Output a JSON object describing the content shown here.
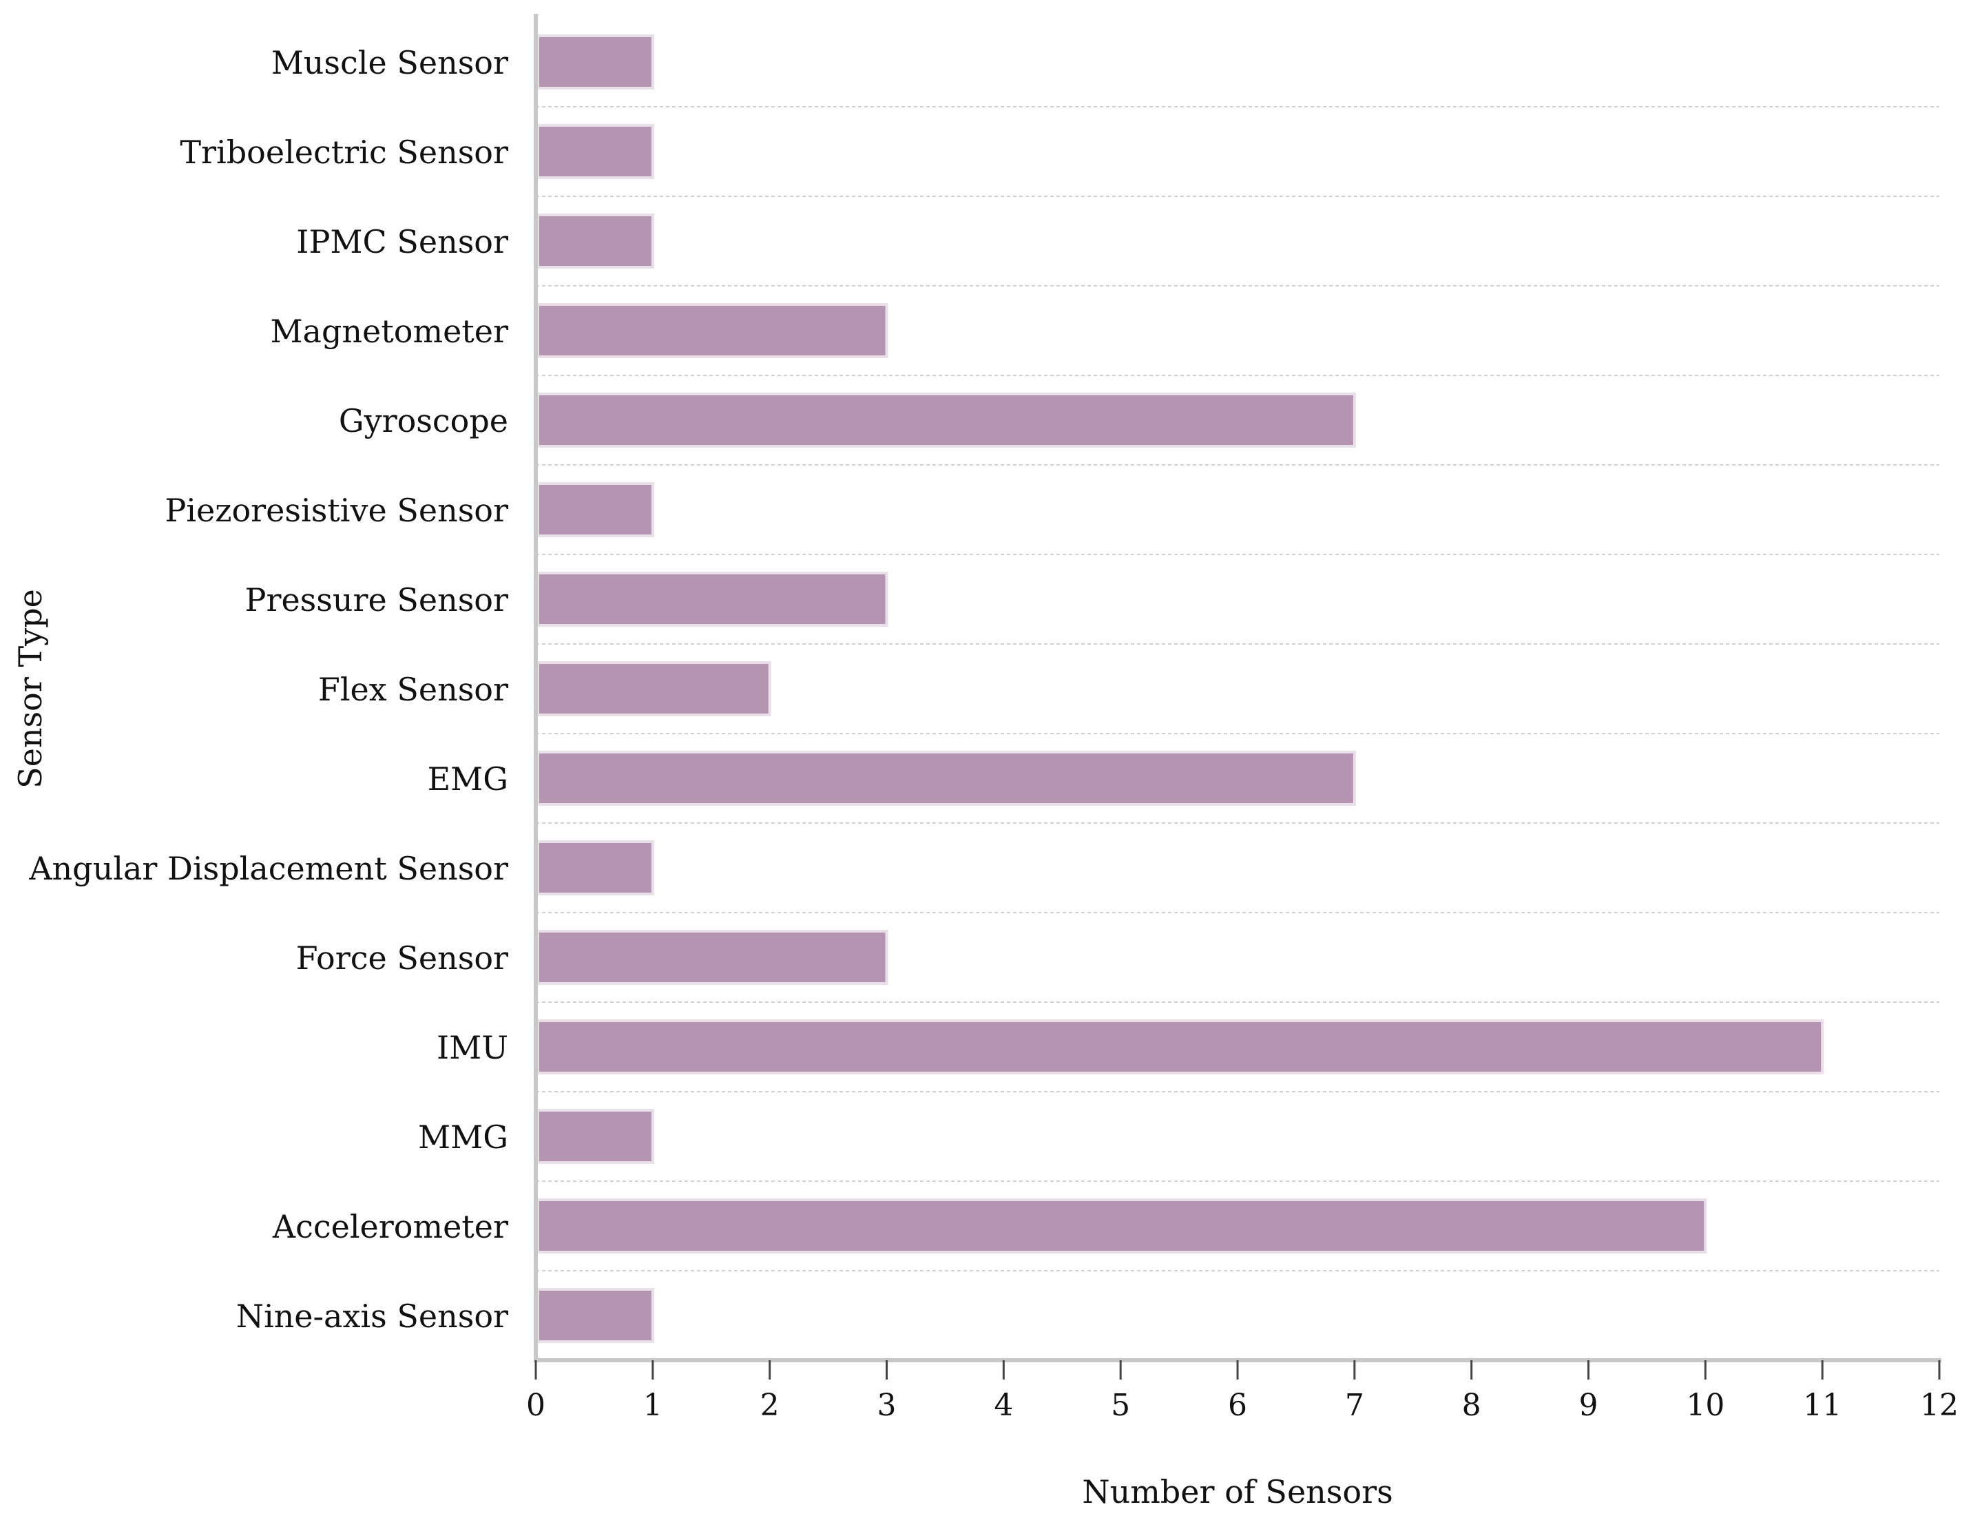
{
  "chart_data": {
    "type": "bar",
    "orientation": "horizontal",
    "categories": [
      "Muscle Sensor",
      "Triboelectric Sensor",
      "IPMC Sensor",
      "Magnetometer",
      "Gyroscope",
      "Piezoresistive Sensor",
      "Pressure Sensor",
      "Flex Sensor",
      "EMG",
      "Angular Displacement Sensor",
      "Force Sensor",
      "IMU",
      "MMG",
      "Accelerometer",
      "Nine-axis Sensor"
    ],
    "values": [
      1,
      1,
      1,
      3,
      7,
      1,
      3,
      2,
      7,
      1,
      3,
      11,
      1,
      10,
      1
    ],
    "xlabel": "Number of Sensors",
    "ylabel": "Sensor Type",
    "xlim": [
      0,
      12
    ],
    "xticks": [
      "0",
      "1",
      "2",
      "3",
      "4",
      "5",
      "6",
      "7",
      "8",
      "9",
      "10",
      "11",
      "12"
    ],
    "grid": "horizontal dashed lines between categories",
    "bar_color": "#b494b0",
    "bar_edge_color": "#e9dfe8",
    "axis_color": "#c8c8c8",
    "grid_color": "#cfcfcf"
  }
}
